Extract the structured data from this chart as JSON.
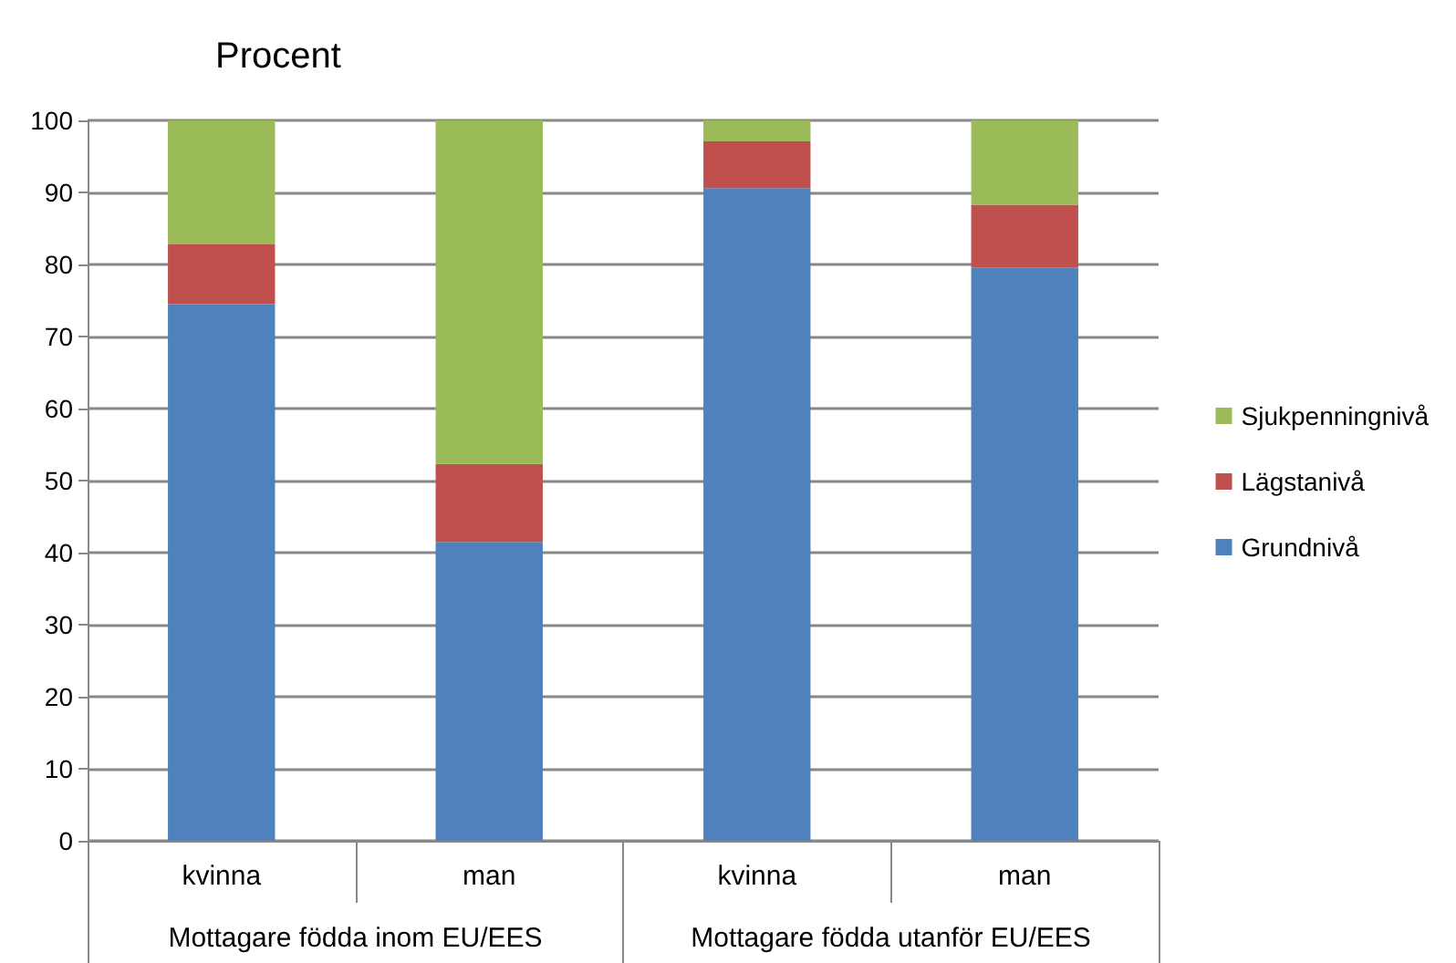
{
  "chart_data": {
    "type": "bar",
    "stacked": true,
    "ylabel": "Procent",
    "categories": [
      "kvinna",
      "man",
      "kvinna",
      "man"
    ],
    "annotations": [
      "Mottagare födda inom EU/EES",
      "Mottagare födda utanför EU/EES"
    ],
    "series": [
      {
        "name": "Grundnivå",
        "color": "#4f81bd",
        "values": [
          74.5,
          41.5,
          90.6,
          79.6
        ]
      },
      {
        "name": "Lägstanivå",
        "color": "#c0504d",
        "values": [
          8.3,
          10.8,
          6.5,
          8.7
        ]
      },
      {
        "name": "Sjukpenningnivå",
        "color": "#9bbb59",
        "values": [
          17.2,
          47.7,
          2.9,
          11.7
        ]
      }
    ],
    "ylim": [
      0,
      100
    ],
    "yticks": [
      0,
      10,
      20,
      30,
      40,
      50,
      60,
      70,
      80,
      90,
      100
    ],
    "grid": "y",
    "legend": "right"
  }
}
